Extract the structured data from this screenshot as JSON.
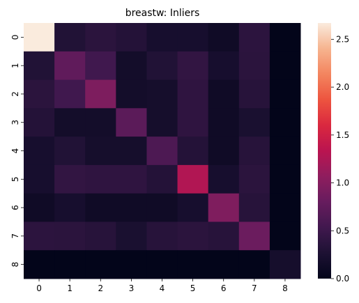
{
  "chart_data": {
    "type": "heatmap",
    "title": "breastw: Inliers",
    "xlabel": "",
    "ylabel": "",
    "x_categories": [
      "0",
      "1",
      "2",
      "3",
      "4",
      "5",
      "6",
      "7",
      "8"
    ],
    "y_categories": [
      "0",
      "1",
      "2",
      "3",
      "4",
      "5",
      "6",
      "7",
      "8"
    ],
    "values": [
      [
        2.67,
        0.3,
        0.37,
        0.32,
        0.21,
        0.21,
        0.13,
        0.38,
        0.0
      ],
      [
        0.3,
        0.75,
        0.53,
        0.17,
        0.3,
        0.42,
        0.21,
        0.37,
        0.0
      ],
      [
        0.37,
        0.53,
        0.95,
        0.17,
        0.19,
        0.4,
        0.13,
        0.34,
        0.0
      ],
      [
        0.32,
        0.17,
        0.17,
        0.72,
        0.19,
        0.4,
        0.13,
        0.24,
        0.0
      ],
      [
        0.21,
        0.3,
        0.19,
        0.19,
        0.62,
        0.32,
        0.13,
        0.34,
        0.0
      ],
      [
        0.21,
        0.42,
        0.4,
        0.4,
        0.32,
        1.28,
        0.21,
        0.37,
        0.0
      ],
      [
        0.13,
        0.21,
        0.13,
        0.13,
        0.13,
        0.21,
        0.96,
        0.34,
        0.0
      ],
      [
        0.38,
        0.37,
        0.34,
        0.24,
        0.34,
        0.37,
        0.34,
        0.83,
        0.0
      ],
      [
        0.0,
        0.0,
        0.0,
        0.0,
        0.0,
        0.0,
        0.0,
        0.0,
        0.19
      ]
    ],
    "colorbar": {
      "min": 0.0,
      "max": 2.67,
      "ticks": [
        0.0,
        0.5,
        1.0,
        1.5,
        2.0,
        2.5
      ],
      "tick_labels": [
        "0.0",
        "0.5",
        "1.0",
        "1.5",
        "2.0",
        "2.5"
      ]
    },
    "colormap": "rocket",
    "grid": false
  }
}
